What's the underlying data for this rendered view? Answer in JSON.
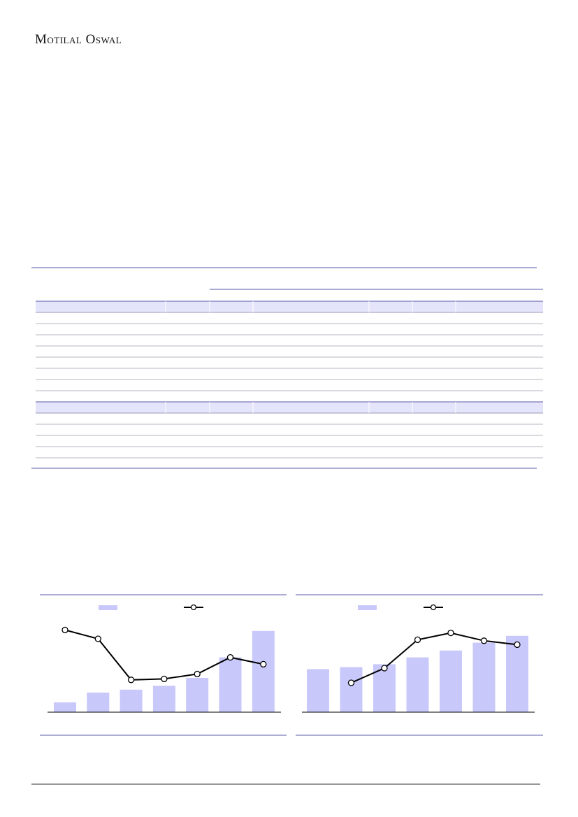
{
  "header": {
    "brand": "Motilal Oswal"
  },
  "chart_data": [
    {
      "type": "bar_line",
      "categories": [
        null,
        null,
        null,
        null,
        null,
        null,
        null
      ],
      "series": [
        {
          "kind": "bar",
          "color": "#c8c8fa",
          "values": [
            10,
            20,
            23,
            27,
            35,
            56,
            83
          ]
        },
        {
          "kind": "line",
          "color": "#000000",
          "axis": "y2",
          "values": [
            84,
            75,
            33,
            34,
            39,
            56,
            49
          ]
        }
      ],
      "ylim": [
        0,
        100
      ],
      "y2lim": [
        0,
        100
      ]
    },
    {
      "type": "bar_line",
      "categories": [
        null,
        null,
        null,
        null,
        null,
        null,
        null
      ],
      "series": [
        {
          "kind": "bar",
          "color": "#c8c8fa",
          "values": [
            44,
            46,
            49,
            56,
            63,
            71,
            78
          ]
        },
        {
          "kind": "line",
          "color": "#000000",
          "axis": "y2",
          "values": [
            null,
            30,
            45,
            74,
            81,
            73,
            69
          ]
        }
      ],
      "ylim": [
        0,
        100
      ],
      "y2lim": [
        0,
        100
      ]
    }
  ]
}
